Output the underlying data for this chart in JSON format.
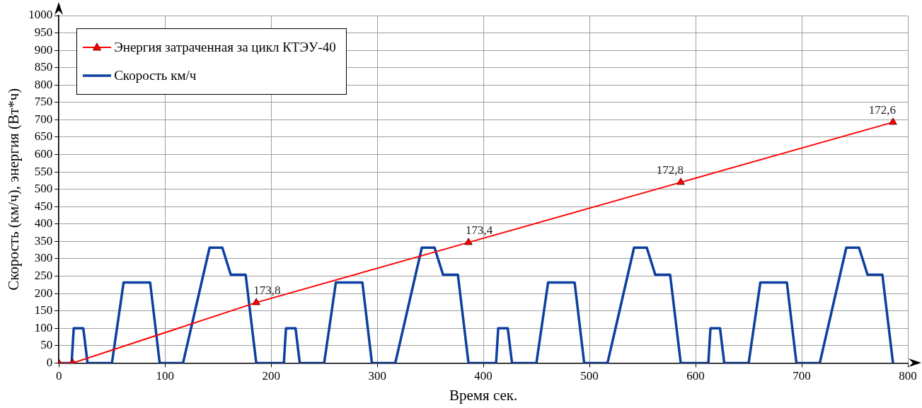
{
  "chart_data": {
    "type": "line",
    "xlabel": "Время сек.",
    "ylabel": "Скорость (км/ч), энергия (Вт*ч)",
    "xlim": [
      0,
      800
    ],
    "xticks": [
      0,
      100,
      200,
      300,
      400,
      500,
      600,
      700,
      800
    ],
    "ylim": [
      0,
      1000
    ],
    "yticks": [
      0,
      50,
      100,
      150,
      200,
      250,
      300,
      350,
      400,
      450,
      500,
      550,
      600,
      650,
      700,
      750,
      800,
      850,
      900,
      950,
      1000
    ],
    "grid": true,
    "legend": "top left",
    "annotations": [
      {
        "text": "173,8",
        "x": 186,
        "y": 174
      },
      {
        "text": "173,4",
        "x": 386,
        "y": 347
      },
      {
        "text": "172,8",
        "x": 586,
        "y": 520
      },
      {
        "text": "172,6",
        "x": 786,
        "y": 693
      }
    ],
    "series": [
      {
        "name": "Энергия затраченная за цикл КТЭУ-40",
        "color": "#ff0000",
        "marker": "triangle",
        "x": [
          0,
          13,
          186,
          386,
          586,
          786
        ],
        "values": [
          0,
          0,
          174,
          347,
          520,
          693
        ]
      },
      {
        "name": "Скорость км/ч",
        "color": "#0d3fa0",
        "marker": "none",
        "x": [
          0,
          12,
          14,
          23,
          27,
          50,
          61,
          86,
          95,
          117,
          142,
          154,
          162,
          176,
          186,
          212,
          214,
          223,
          227,
          250,
          261,
          286,
          295,
          317,
          342,
          354,
          362,
          376,
          386,
          412,
          414,
          423,
          427,
          450,
          461,
          486,
          495,
          517,
          542,
          554,
          562,
          576,
          586,
          612,
          614,
          623,
          627,
          650,
          661,
          686,
          695,
          717,
          742,
          754,
          762,
          776,
          786
        ],
        "values": [
          0,
          0,
          100,
          100,
          0,
          0,
          232,
          232,
          0,
          0,
          332,
          332,
          254,
          254,
          0,
          0,
          100,
          100,
          0,
          0,
          232,
          232,
          0,
          0,
          332,
          332,
          254,
          254,
          0,
          0,
          100,
          100,
          0,
          0,
          232,
          232,
          0,
          0,
          332,
          332,
          254,
          254,
          0,
          0,
          100,
          100,
          0,
          0,
          232,
          232,
          0,
          0,
          332,
          332,
          254,
          254,
          0
        ]
      }
    ]
  }
}
